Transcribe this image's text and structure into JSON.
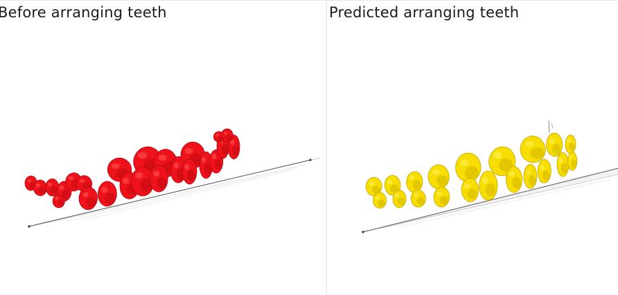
{
  "panels": [
    {
      "title": "Before arranging teeth",
      "color": "#f0121a",
      "shade": "#b30a10",
      "highlight": "#ff5a5a"
    },
    {
      "title": "Predicted arranging teeth",
      "color": "#f7de00",
      "shade": "#c9ab00",
      "highlight": "#fff36a"
    }
  ]
}
